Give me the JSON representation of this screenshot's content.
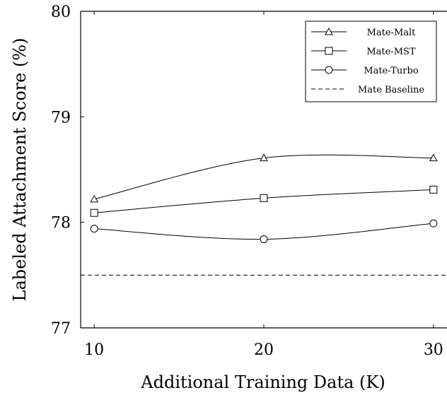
{
  "chart_data": {
    "type": "line",
    "xlabel": "Additional Training Data (K)",
    "ylabel": "Labeled Attachment Score (%)",
    "xlim": [
      9.2,
      30.8
    ],
    "ylim": [
      77,
      80
    ],
    "xticks": [
      10,
      20,
      30
    ],
    "yticks": [
      77,
      78,
      79,
      80
    ],
    "grid": false,
    "legend_position": "top-right",
    "series": [
      {
        "name": "Mate-Malt",
        "marker": "triangle",
        "dash": "solid",
        "x": [
          10,
          20,
          30
        ],
        "y": [
          78.22,
          78.61,
          78.61
        ]
      },
      {
        "name": "Mate-MST",
        "marker": "square",
        "dash": "solid",
        "x": [
          10,
          20,
          30
        ],
        "y": [
          78.09,
          78.23,
          78.31
        ]
      },
      {
        "name": "Mate-Turbo",
        "marker": "circle",
        "dash": "solid",
        "x": [
          10,
          20,
          30
        ],
        "y": [
          77.94,
          77.84,
          77.99
        ]
      },
      {
        "name": "Mate Baseline",
        "marker": "none",
        "dash": "dashed",
        "x": [
          9.2,
          30.8
        ],
        "y": [
          77.5,
          77.5
        ]
      }
    ]
  }
}
